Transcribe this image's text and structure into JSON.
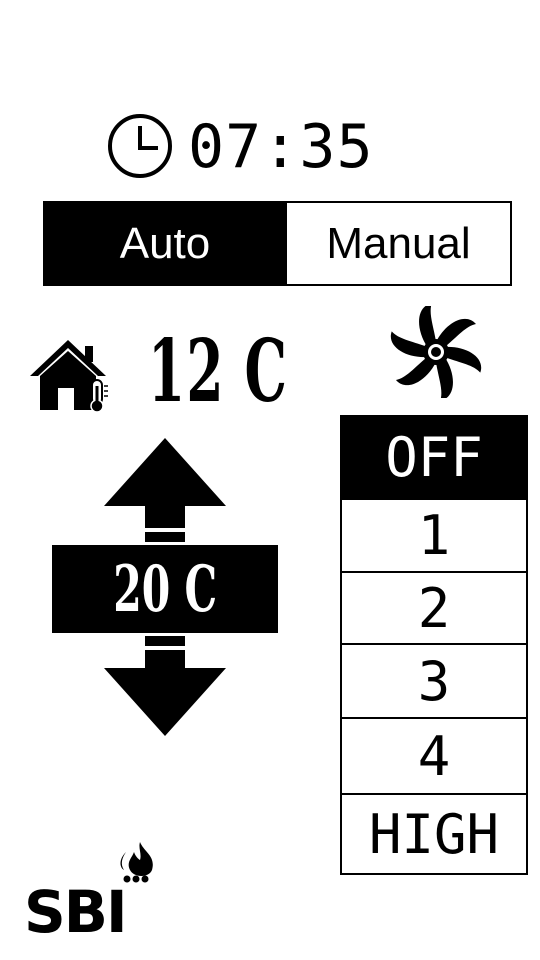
{
  "clock": {
    "icon": "clock-icon",
    "time": "07:35"
  },
  "mode": {
    "options": [
      "Auto",
      "Manual"
    ],
    "selected": "Auto"
  },
  "indoor": {
    "icon": "house-thermometer-icon",
    "temperature": "12 C"
  },
  "setpoint": {
    "value": "20 C",
    "increase_icon": "arrow-up-icon",
    "decrease_icon": "arrow-down-icon"
  },
  "fan": {
    "icon": "fan-icon",
    "speeds": [
      "OFF",
      "1",
      "2",
      "3",
      "4",
      "HIGH"
    ],
    "selected": "OFF"
  },
  "brand": {
    "logo_text": "SBI",
    "icon": "flame-logo-icon"
  },
  "colors": {
    "foreground": "#000000",
    "background": "#ffffff"
  }
}
